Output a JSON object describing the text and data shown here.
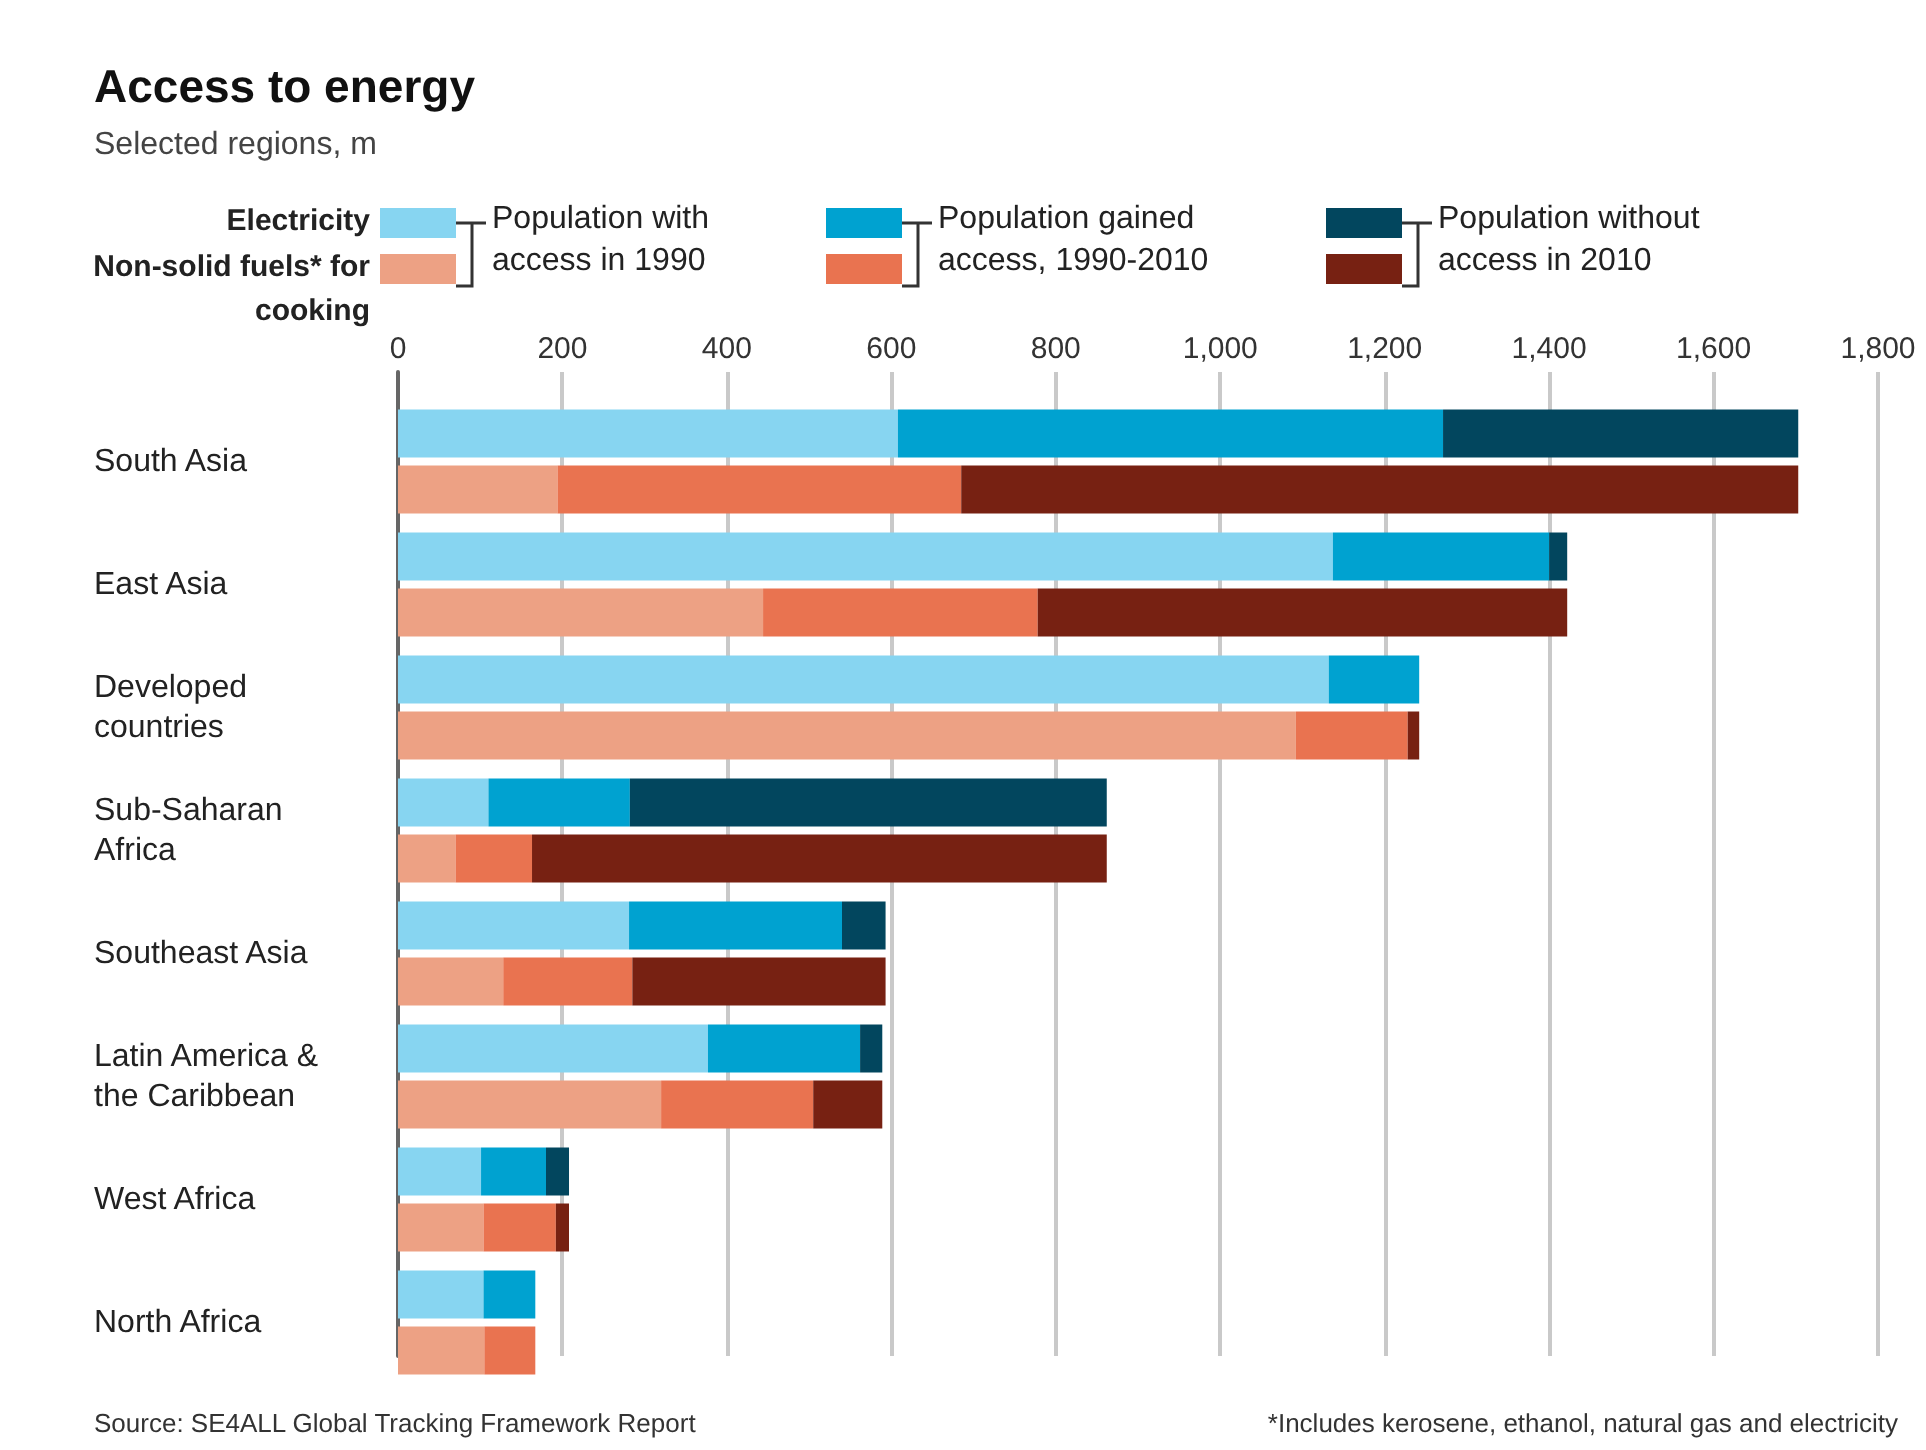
{
  "chart_data": [
    {
      "type": "bar",
      "orientation": "horizontal",
      "stacked": true,
      "title": "Access to energy",
      "subtitle": "Selected regions, m",
      "legend_title": "Electricity",
      "categories": [
        "South Asia",
        "East Asia",
        "Developed countries",
        "Sub-Saharan Africa",
        "Southeast Asia",
        "Latin America & the Caribbean",
        "West Africa",
        "North Africa"
      ],
      "series": [
        {
          "name": "Population with access in 1990",
          "color": "#87d5f1",
          "values": [
            608,
            1137,
            1132,
            110,
            281,
            377,
            101,
            104
          ]
        },
        {
          "name": "Population gained access, 1990-2010",
          "color": "#00a2d0",
          "values": [
            663,
            263,
            110,
            172,
            259,
            185,
            79,
            63
          ]
        },
        {
          "name": "Population without access in 2010",
          "color": "#02465e",
          "values": [
            432,
            22,
            null,
            580,
            53,
            27,
            28,
            null
          ]
        }
      ],
      "xlim": [
        0,
        1800
      ],
      "xticks": [
        0,
        200,
        400,
        600,
        800,
        {
          "value": 1000,
          "label": "1,000"
        },
        {
          "value": 1200,
          "label": "1,200"
        },
        {
          "value": 1400,
          "label": "1,400"
        },
        {
          "value": 1600,
          "label": "1,600"
        },
        {
          "value": 1800,
          "label": "1,800"
        }
      ],
      "grid": "x",
      "legend": "top left",
      "tick_labels": "x",
      "annotations": [
        "Source: SE4ALL Global Tracking Framework Report",
        "*Includes kerosene, ethanol, natural gas and electricity"
      ]
    },
    {
      "type": "bar",
      "orientation": "horizontal",
      "stacked": true,
      "legend_title": "Non-solid fuels* for cooking",
      "categories": [
        "South Asia",
        "East Asia",
        "Developed countries",
        "Sub-Saharan Africa",
        "Southeast Asia",
        "Latin America & the Caribbean",
        "West Africa",
        "North Africa"
      ],
      "series": [
        {
          "color": "#eda184",
          "values": [
            194,
            444,
            1092,
            70,
            128,
            320,
            104,
            105
          ]
        },
        {
          "color": "#e97350",
          "values": [
            491,
            334,
            136,
            93,
            157,
            185,
            88,
            62
          ]
        },
        {
          "color": "#772112",
          "values": [
            1018,
            644,
            14,
            699,
            308,
            84,
            16,
            null
          ]
        }
      ],
      "xlim": [
        0,
        1800
      ],
      "tick_labels": "y"
    }
  ]
}
